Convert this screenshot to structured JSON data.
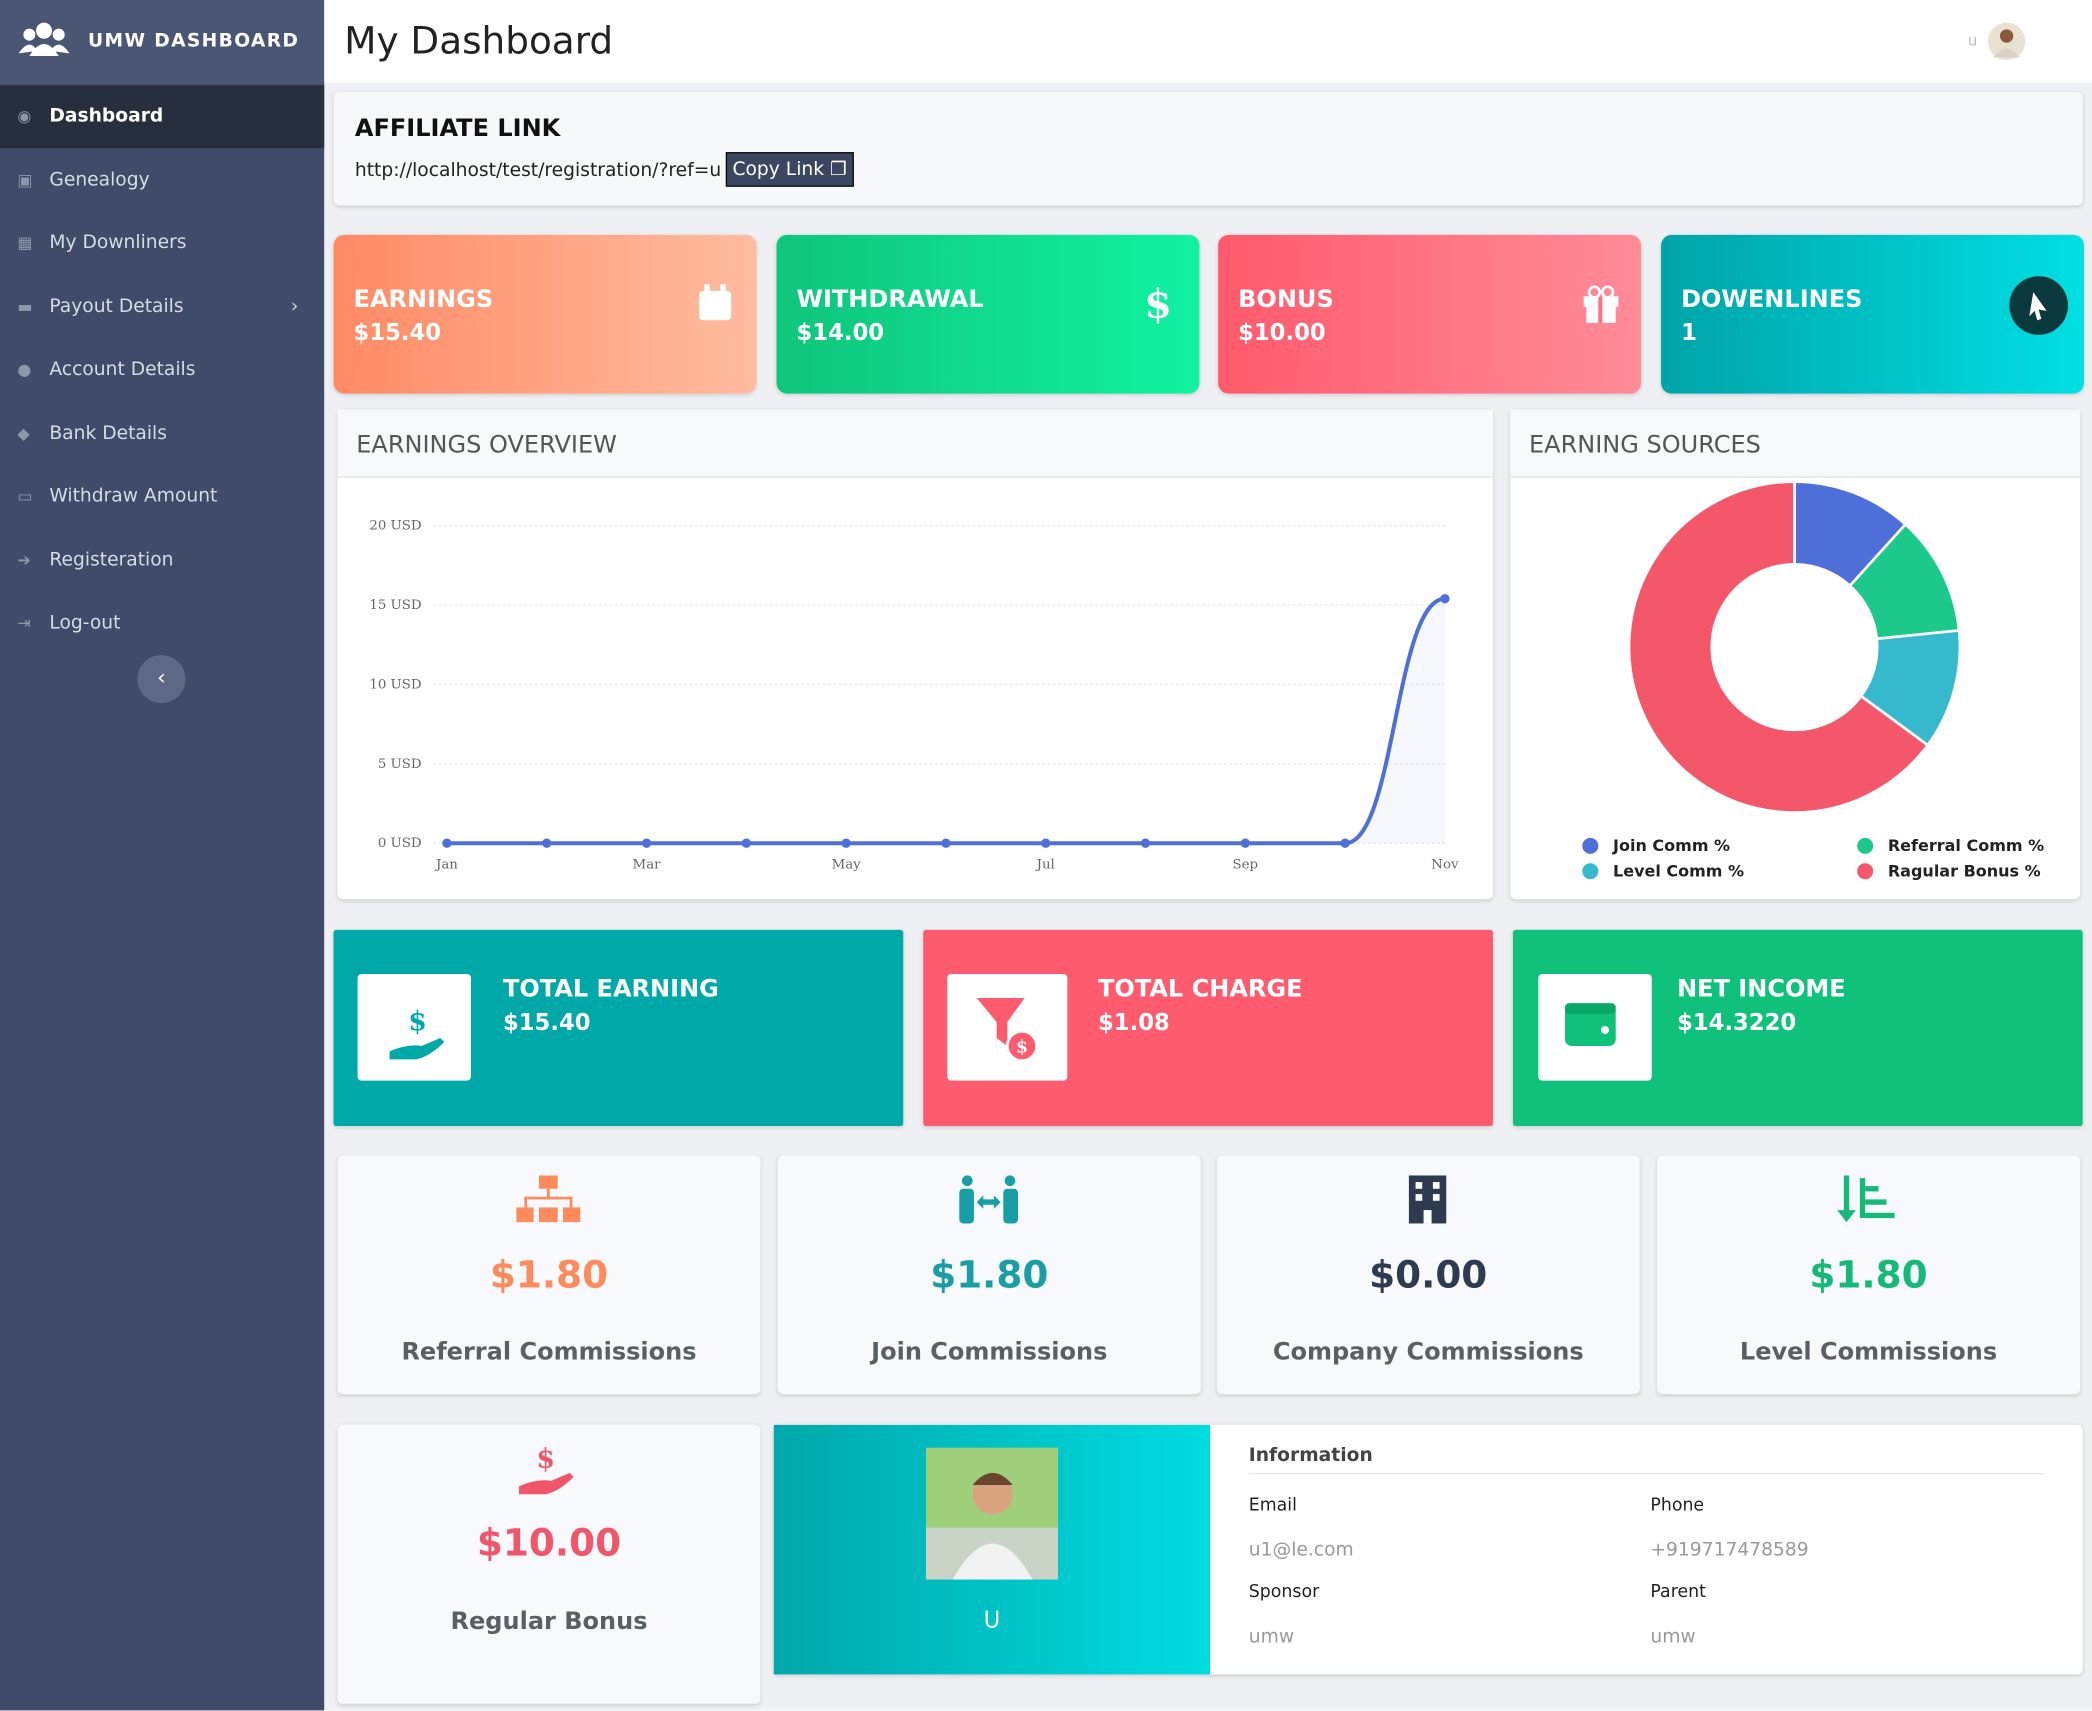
{
  "sidebar": {
    "brand": "UMW DASHBOARD",
    "menu": [
      "Dashboard",
      "Genealogy",
      "My Downliners",
      "Payout Details",
      "Account Details",
      "Bank Details",
      "Withdraw Amount",
      "Registeration",
      "Log-out"
    ]
  },
  "header": {
    "title": "My Dashboard",
    "user": "u"
  },
  "affiliate": {
    "title": "AFFILIATE LINK",
    "link": "http://localhost/test/registration/?ref=u",
    "button": "Copy Link"
  },
  "stat_cards": [
    {
      "label": "EARNINGS",
      "value": "$15.40"
    },
    {
      "label": "WITHDRAWAL",
      "value": "$14.00"
    },
    {
      "label": "BONUS",
      "value": "$10.00"
    },
    {
      "label": "DOWENLINES",
      "value": "1"
    }
  ],
  "chart_data": [
    {
      "type": "line",
      "title": "EARNINGS OVERVIEW",
      "categories": [
        "Jan",
        null,
        "Mar",
        null,
        "May",
        null,
        "Jul",
        null,
        "Sep",
        null,
        "Nov"
      ],
      "values": [
        0,
        0,
        0,
        0,
        0,
        0,
        0,
        0,
        0,
        0,
        15.4
      ],
      "color": "#4e6ed8",
      "ylim": [
        0,
        20
      ],
      "yticks": [
        {
          "value": 0,
          "label": "0 USD"
        },
        {
          "value": 5,
          "label": "5 USD"
        },
        {
          "value": 10,
          "label": "10 USD"
        },
        {
          "value": 15,
          "label": "15 USD"
        },
        {
          "value": 20,
          "label": "20 USD"
        }
      ],
      "grid": true
    },
    {
      "type": "doughnut",
      "title": "EARNING SOURCES",
      "series": [
        {
          "name": "Join Comm %",
          "color": "#4e6ed8",
          "value": 11.7
        },
        {
          "name": "Referral Comm %",
          "color": "#1cc88a",
          "value": 11.7
        },
        {
          "name": "Level Comm %",
          "color": "#36b9cc",
          "value": 11.7
        },
        {
          "name": "Ragular Bonus %",
          "color": "#f4566a",
          "value": 64.9
        }
      ],
      "legend": "bottom"
    }
  ],
  "summary_cards": [
    {
      "label": "TOTAL EARNING",
      "value": "$15.40"
    },
    {
      "label": "TOTAL CHARGE",
      "value": "$1.08"
    },
    {
      "label": "NET INCOME",
      "value": "$14.3220"
    }
  ],
  "commissions": [
    {
      "value": "$1.80",
      "label": "Referral Commissions"
    },
    {
      "value": "$1.80",
      "label": "Join Commissions"
    },
    {
      "value": "$0.00",
      "label": "Company Commissions"
    },
    {
      "value": "$1.80",
      "label": "Level Commissions"
    },
    {
      "value": "$10.00",
      "label": "Regular Bonus"
    }
  ],
  "profile": {
    "name": "U",
    "info_title": "Information",
    "fields": [
      {
        "label": "Email",
        "value": "u1@le.com"
      },
      {
        "label": "Phone",
        "value": "+919717478589"
      },
      {
        "label": "Sponsor",
        "value": "umw"
      },
      {
        "label": "Parent",
        "value": "umw"
      }
    ]
  }
}
